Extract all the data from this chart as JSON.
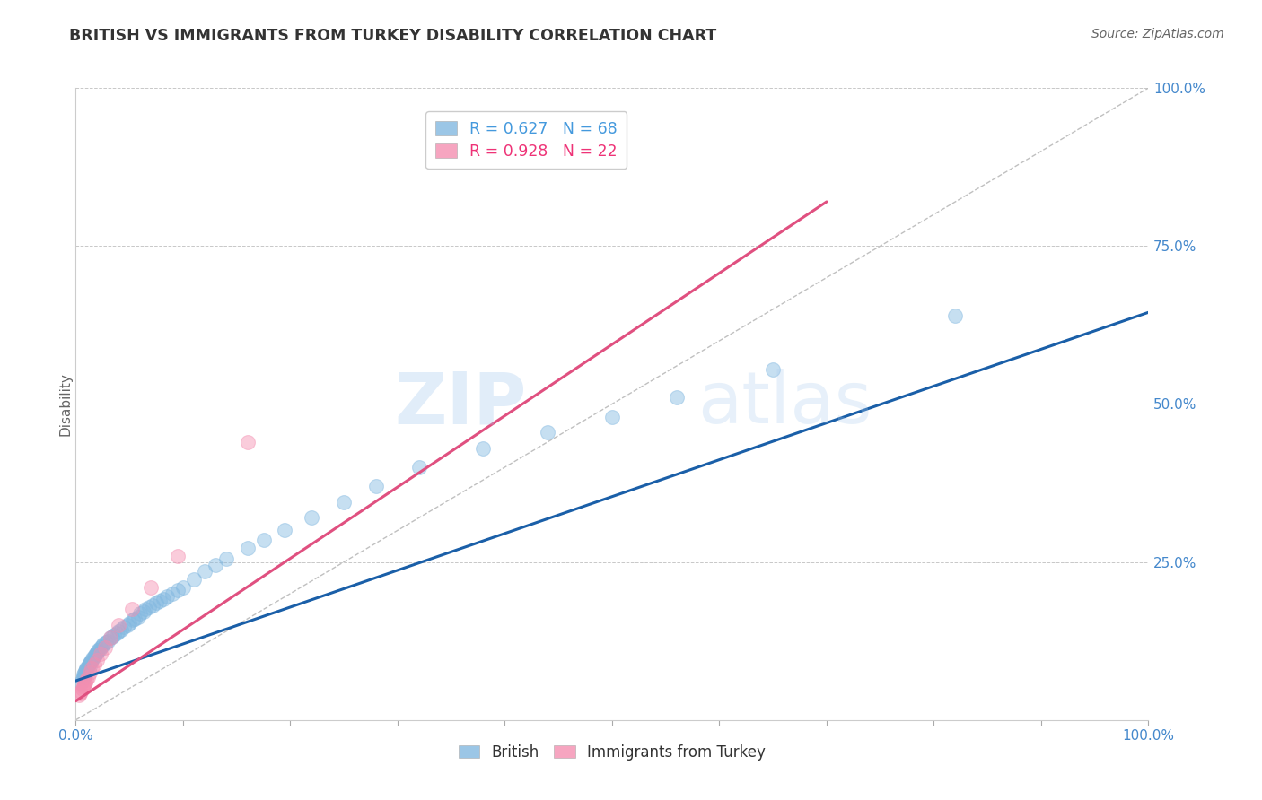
{
  "title": "BRITISH VS IMMIGRANTS FROM TURKEY DISABILITY CORRELATION CHART",
  "source_text": "Source: ZipAtlas.com",
  "ylabel": "Disability",
  "watermark_zip": "ZIP",
  "watermark_atlas": "atlas",
  "british_R": 0.627,
  "british_N": 68,
  "turkey_R": 0.928,
  "turkey_N": 22,
  "british_scatter_color": "#82b8e0",
  "turkey_scatter_color": "#f48fb1",
  "british_line_color": "#1a5fa8",
  "turkey_line_color": "#e05080",
  "diagonal_line_color": "#c0c0c0",
  "grid_color": "#c8c8c8",
  "title_color": "#333333",
  "source_color": "#666666",
  "axis_tick_color": "#4488cc",
  "ylabel_color": "#666666",
  "legend_british_color": "#4499dd",
  "legend_turkey_color": "#ee3377",
  "british_x": [
    0.005,
    0.006,
    0.007,
    0.007,
    0.008,
    0.008,
    0.009,
    0.01,
    0.01,
    0.011,
    0.012,
    0.013,
    0.013,
    0.014,
    0.015,
    0.016,
    0.017,
    0.018,
    0.019,
    0.02,
    0.021,
    0.022,
    0.023,
    0.025,
    0.026,
    0.028,
    0.03,
    0.032,
    0.034,
    0.036,
    0.038,
    0.04,
    0.042,
    0.045,
    0.048,
    0.05,
    0.053,
    0.055,
    0.058,
    0.06,
    0.063,
    0.065,
    0.068,
    0.072,
    0.075,
    0.078,
    0.082,
    0.085,
    0.09,
    0.095,
    0.1,
    0.11,
    0.12,
    0.13,
    0.14,
    0.16,
    0.175,
    0.195,
    0.22,
    0.25,
    0.28,
    0.32,
    0.38,
    0.44,
    0.5,
    0.56,
    0.65,
    0.82
  ],
  "british_y": [
    0.06,
    0.065,
    0.068,
    0.072,
    0.07,
    0.075,
    0.078,
    0.08,
    0.082,
    0.085,
    0.088,
    0.09,
    0.085,
    0.092,
    0.095,
    0.098,
    0.1,
    0.103,
    0.105,
    0.108,
    0.11,
    0.112,
    0.115,
    0.118,
    0.12,
    0.123,
    0.125,
    0.13,
    0.132,
    0.135,
    0.138,
    0.14,
    0.143,
    0.148,
    0.15,
    0.153,
    0.158,
    0.16,
    0.163,
    0.168,
    0.172,
    0.175,
    0.178,
    0.182,
    0.185,
    0.188,
    0.192,
    0.195,
    0.2,
    0.205,
    0.21,
    0.222,
    0.235,
    0.245,
    0.255,
    0.272,
    0.285,
    0.3,
    0.32,
    0.345,
    0.37,
    0.4,
    0.43,
    0.455,
    0.48,
    0.51,
    0.555,
    0.64
  ],
  "turkey_x": [
    0.003,
    0.004,
    0.005,
    0.006,
    0.007,
    0.007,
    0.008,
    0.009,
    0.01,
    0.011,
    0.013,
    0.015,
    0.017,
    0.02,
    0.023,
    0.027,
    0.032,
    0.04,
    0.052,
    0.07,
    0.095,
    0.16
  ],
  "turkey_y": [
    0.04,
    0.042,
    0.045,
    0.05,
    0.052,
    0.055,
    0.058,
    0.06,
    0.063,
    0.068,
    0.075,
    0.082,
    0.088,
    0.095,
    0.105,
    0.115,
    0.13,
    0.15,
    0.175,
    0.21,
    0.26,
    0.44
  ],
  "british_line_x0": 0.0,
  "british_line_y0": 0.062,
  "british_line_x1": 1.0,
  "british_line_y1": 0.645,
  "turkey_line_x0": 0.0,
  "turkey_line_y0": 0.03,
  "turkey_line_x1": 0.7,
  "turkey_line_y1": 0.82,
  "xlim": [
    0.0,
    1.0
  ],
  "ylim": [
    0.0,
    1.0
  ],
  "ytick_positions": [
    0.0,
    0.25,
    0.5,
    0.75,
    1.0
  ],
  "ytick_labels": [
    "",
    "25.0%",
    "50.0%",
    "75.0%",
    "100.0%"
  ],
  "xtick_positions": [
    0.0,
    0.1,
    0.2,
    0.3,
    0.4,
    0.5,
    0.6,
    0.7,
    0.8,
    0.9,
    1.0
  ],
  "xtick_labels_show": [
    "0.0%",
    "100.0%"
  ],
  "marker_size": 130,
  "marker_alpha": 0.45,
  "line_width": 2.2,
  "diagonal_line_style": "--",
  "diagonal_lw": 1.0
}
